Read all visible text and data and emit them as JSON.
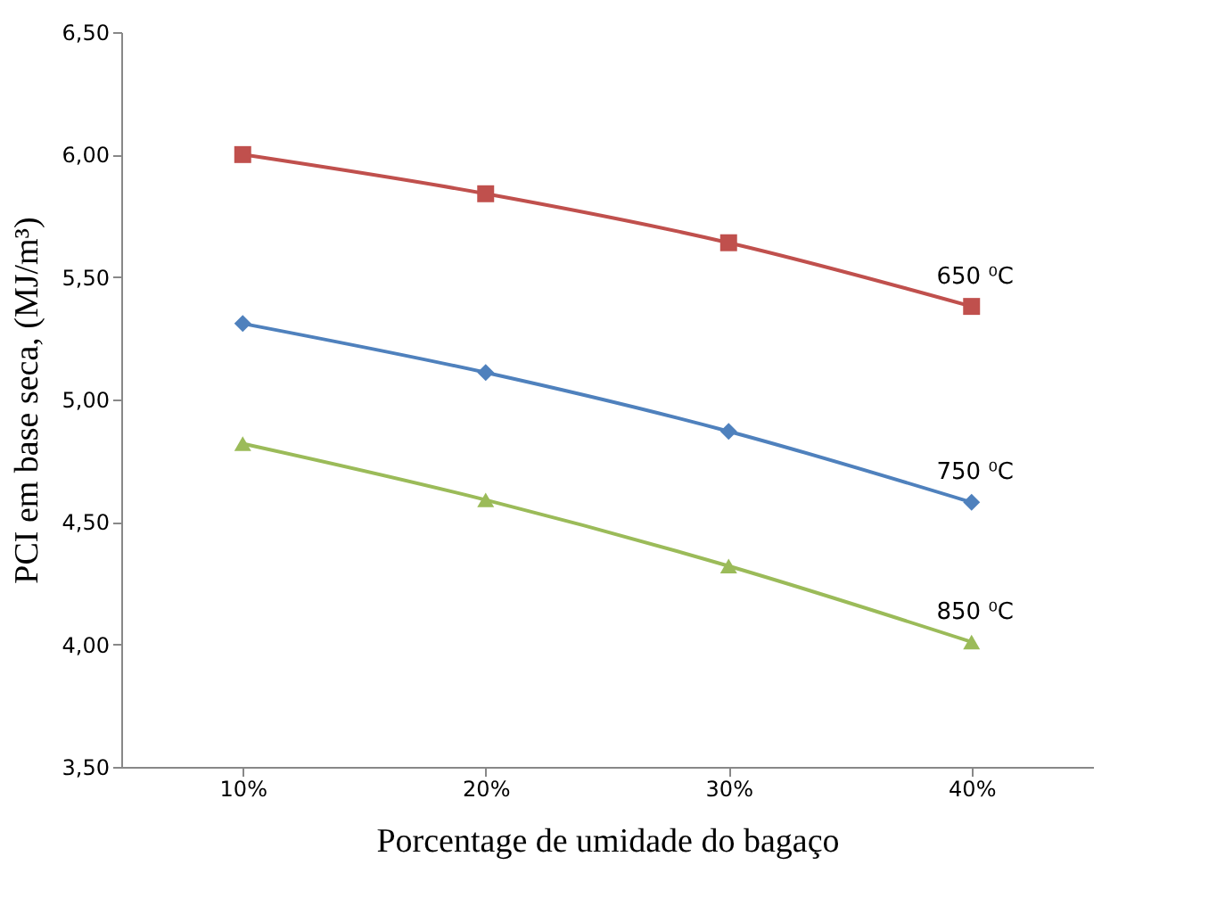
{
  "chart_data": {
    "type": "line",
    "xlabel": "Porcentage de umidade do bagaço",
    "ylabel": "PCI em base seca, (MJ/m³)",
    "categories": [
      "10%",
      "20%",
      "30%",
      "40%"
    ],
    "ylim": [
      3.5,
      6.5
    ],
    "yticks": [
      {
        "value": 3.5,
        "label": "3,50"
      },
      {
        "value": 4.0,
        "label": "4,00"
      },
      {
        "value": 4.5,
        "label": "4,50"
      },
      {
        "value": 5.0,
        "label": "5,00"
      },
      {
        "value": 5.5,
        "label": "5,50"
      },
      {
        "value": 6.0,
        "label": "6,00"
      },
      {
        "value": 6.5,
        "label": "6,50"
      }
    ],
    "grid": false,
    "series": [
      {
        "name": "650 ⁰C",
        "color": "#c0504d",
        "marker": "square",
        "values": [
          6.0,
          5.84,
          5.64,
          5.38
        ]
      },
      {
        "name": "750 ⁰C",
        "color": "#4f81bd",
        "marker": "diamond",
        "values": [
          5.31,
          5.11,
          4.87,
          4.58
        ]
      },
      {
        "name": "850 ⁰C",
        "color": "#9bbb59",
        "marker": "triangle",
        "values": [
          4.82,
          4.59,
          4.32,
          4.01
        ]
      }
    ]
  }
}
